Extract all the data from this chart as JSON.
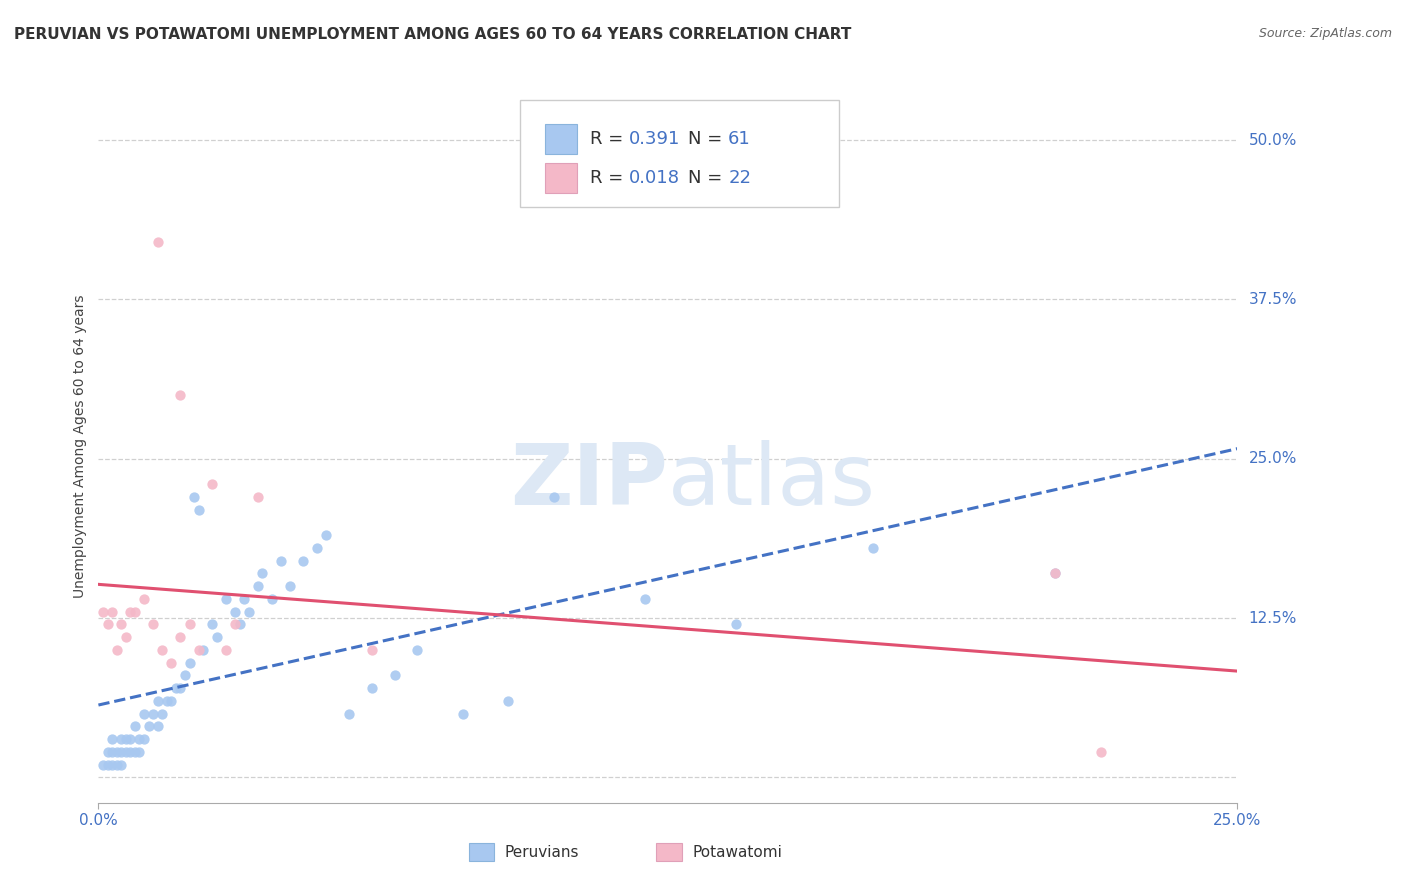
{
  "title": "PERUVIAN VS POTAWATOMI UNEMPLOYMENT AMONG AGES 60 TO 64 YEARS CORRELATION CHART",
  "source": "Source: ZipAtlas.com",
  "ylabel": "Unemployment Among Ages 60 to 64 years",
  "xlim": [
    0.0,
    0.25
  ],
  "ylim": [
    -0.02,
    0.54
  ],
  "ytick_positions": [
    0.0,
    0.125,
    0.25,
    0.375,
    0.5
  ],
  "ytick_labels": [
    "",
    "12.5%",
    "25.0%",
    "37.5%",
    "50.0%"
  ],
  "grid_color": "#d0d0d0",
  "background_color": "#ffffff",
  "peruvian_color": "#a8c8f0",
  "potawatomi_color": "#f4b8c8",
  "peruvian_R": 0.391,
  "peruvian_N": 61,
  "potawatomi_R": 0.018,
  "potawatomi_N": 22,
  "peruvian_line_color": "#4472c4",
  "potawatomi_line_color": "#e05070",
  "tick_color": "#4472c4",
  "title_fontsize": 11,
  "axis_label_fontsize": 10,
  "tick_fontsize": 11,
  "legend_fontsize": 13,
  "peruvian_x": [
    0.001,
    0.002,
    0.002,
    0.003,
    0.003,
    0.003,
    0.004,
    0.004,
    0.005,
    0.005,
    0.005,
    0.006,
    0.006,
    0.007,
    0.007,
    0.008,
    0.008,
    0.009,
    0.009,
    0.01,
    0.01,
    0.011,
    0.012,
    0.013,
    0.013,
    0.014,
    0.015,
    0.016,
    0.017,
    0.018,
    0.019,
    0.02,
    0.021,
    0.022,
    0.023,
    0.025,
    0.026,
    0.028,
    0.03,
    0.031,
    0.032,
    0.033,
    0.035,
    0.036,
    0.038,
    0.04,
    0.042,
    0.045,
    0.048,
    0.05,
    0.055,
    0.06,
    0.065,
    0.07,
    0.08,
    0.09,
    0.1,
    0.12,
    0.14,
    0.17,
    0.21
  ],
  "peruvian_y": [
    0.01,
    0.01,
    0.02,
    0.01,
    0.02,
    0.03,
    0.01,
    0.02,
    0.01,
    0.02,
    0.03,
    0.02,
    0.03,
    0.02,
    0.03,
    0.02,
    0.04,
    0.02,
    0.03,
    0.03,
    0.05,
    0.04,
    0.05,
    0.04,
    0.06,
    0.05,
    0.06,
    0.06,
    0.07,
    0.07,
    0.08,
    0.09,
    0.22,
    0.21,
    0.1,
    0.12,
    0.11,
    0.14,
    0.13,
    0.12,
    0.14,
    0.13,
    0.15,
    0.16,
    0.14,
    0.17,
    0.15,
    0.17,
    0.18,
    0.19,
    0.05,
    0.07,
    0.08,
    0.1,
    0.05,
    0.06,
    0.22,
    0.14,
    0.12,
    0.18,
    0.16
  ],
  "potawatomi_x": [
    0.001,
    0.002,
    0.003,
    0.004,
    0.005,
    0.006,
    0.007,
    0.008,
    0.01,
    0.012,
    0.014,
    0.016,
    0.018,
    0.02,
    0.022,
    0.025,
    0.028,
    0.03,
    0.035,
    0.06,
    0.21,
    0.22
  ],
  "potawatomi_y": [
    0.13,
    0.12,
    0.13,
    0.1,
    0.12,
    0.11,
    0.13,
    0.13,
    0.14,
    0.12,
    0.1,
    0.09,
    0.11,
    0.12,
    0.1,
    0.23,
    0.1,
    0.12,
    0.22,
    0.1,
    0.16,
    0.02
  ]
}
